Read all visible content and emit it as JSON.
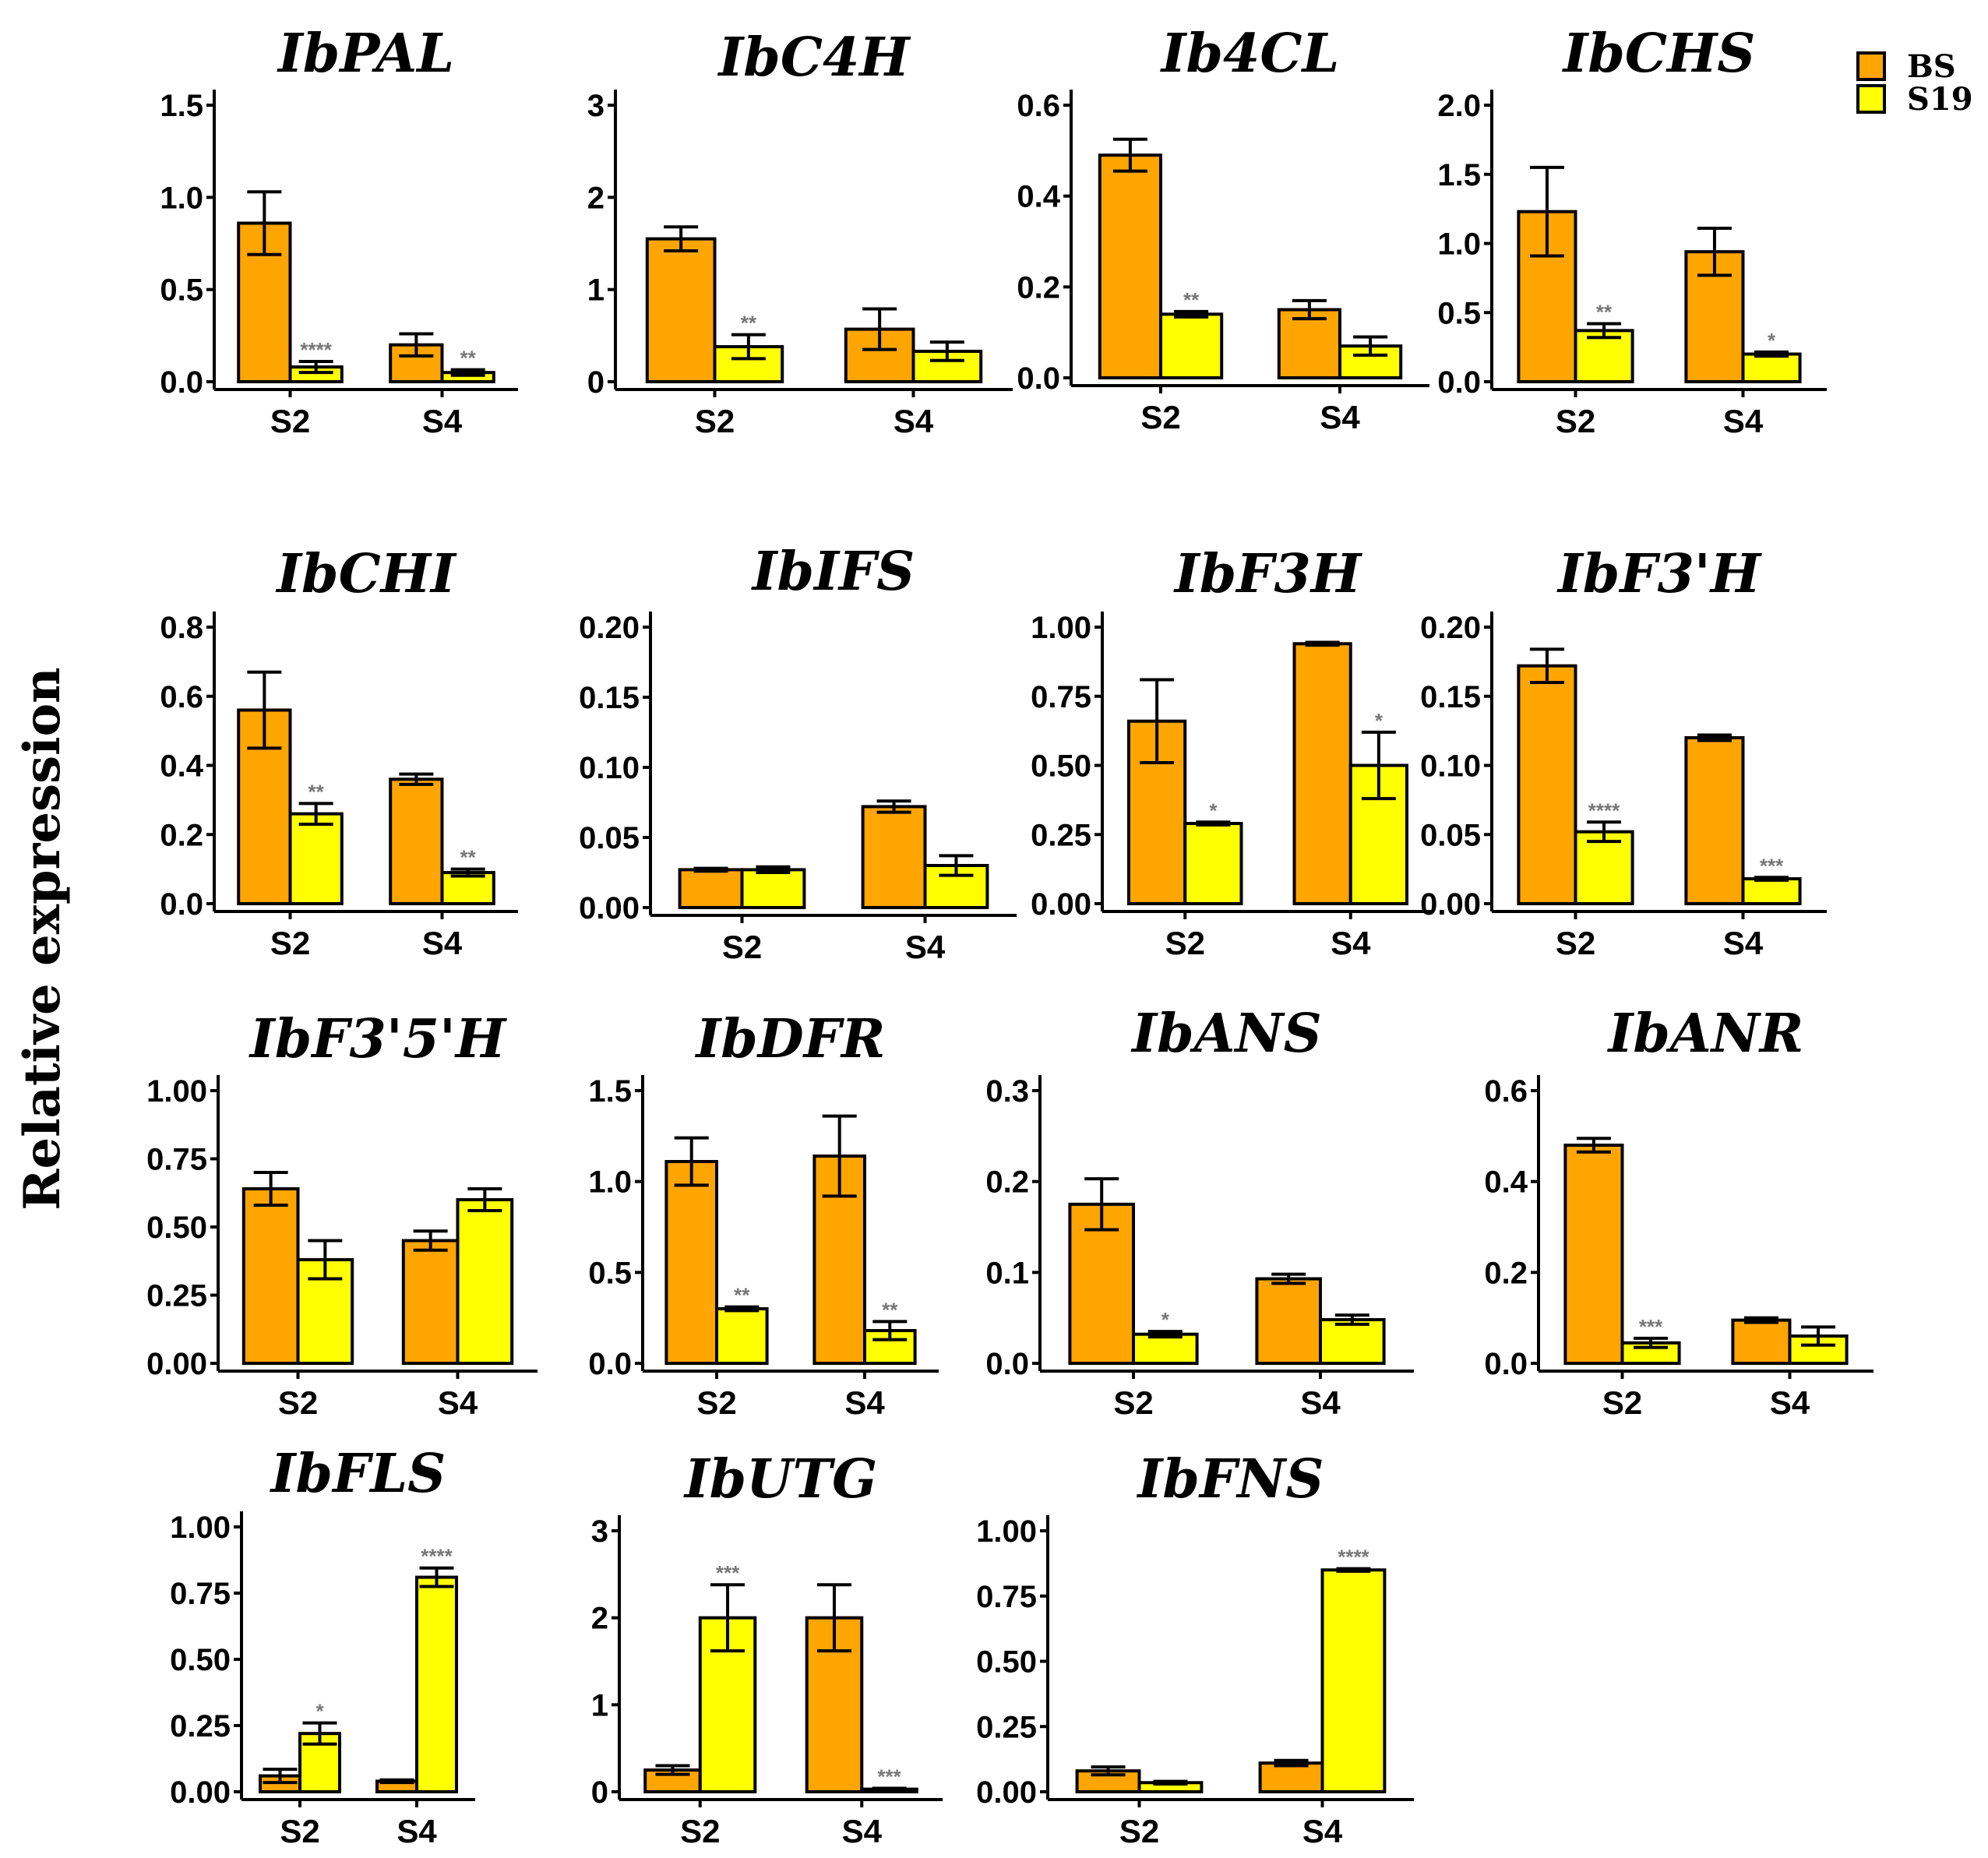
{
  "ylabel": "Relative expression",
  "legend": {
    "placement": "top-right",
    "items": [
      {
        "name": "BS",
        "color": "#FFA500"
      },
      {
        "name": "S19",
        "color": "#FFFF00"
      }
    ]
  },
  "colors": {
    "BS": "#FFA500",
    "S19": "#FFFF00"
  },
  "chart_data": [
    {
      "type": "bar",
      "title": "IbPAL",
      "categories": [
        "S2",
        "S4"
      ],
      "ylim": [
        0,
        1.5
      ],
      "yticks": [
        "0.0",
        "0.5",
        "1.0",
        "1.5"
      ],
      "series": [
        {
          "name": "BS",
          "values": [
            0.86,
            0.2
          ],
          "errors": [
            0.17,
            0.06
          ]
        },
        {
          "name": "S19",
          "values": [
            0.08,
            0.05
          ],
          "errors": [
            0.03,
            0.015
          ],
          "significance": [
            "****",
            "**"
          ]
        }
      ]
    },
    {
      "type": "bar",
      "title": "IbC4H",
      "categories": [
        "S2",
        "S4"
      ],
      "ylim": [
        0,
        3
      ],
      "yticks": [
        "0",
        "1",
        "2",
        "3"
      ],
      "series": [
        {
          "name": "BS",
          "values": [
            1.55,
            0.57
          ],
          "errors": [
            0.13,
            0.22
          ]
        },
        {
          "name": "S19",
          "values": [
            0.38,
            0.33
          ],
          "errors": [
            0.13,
            0.1
          ],
          "significance": [
            "**",
            ""
          ]
        }
      ]
    },
    {
      "type": "bar",
      "title": "Ib4CL",
      "categories": [
        "S2",
        "S4"
      ],
      "ylim": [
        0,
        0.6
      ],
      "yticks": [
        "0.0",
        "0.2",
        "0.4",
        "0.6"
      ],
      "series": [
        {
          "name": "BS",
          "values": [
            0.49,
            0.15
          ],
          "errors": [
            0.035,
            0.02
          ]
        },
        {
          "name": "S19",
          "values": [
            0.14,
            0.07
          ],
          "errors": [
            0.006,
            0.02
          ],
          "significance": [
            "**",
            ""
          ]
        }
      ]
    },
    {
      "type": "bar",
      "title": "IbCHS",
      "categories": [
        "S2",
        "S4"
      ],
      "ylim": [
        0,
        2.0
      ],
      "yticks": [
        "0.0",
        "0.5",
        "1.0",
        "1.5",
        "2.0"
      ],
      "series": [
        {
          "name": "BS",
          "values": [
            1.23,
            0.94
          ],
          "errors": [
            0.32,
            0.17
          ]
        },
        {
          "name": "S19",
          "values": [
            0.37,
            0.2
          ],
          "errors": [
            0.05,
            0.015
          ],
          "significance": [
            "**",
            "*"
          ]
        }
      ]
    },
    {
      "type": "bar",
      "title": "IbCHI",
      "categories": [
        "S2",
        "S4"
      ],
      "ylim": [
        0,
        0.8
      ],
      "yticks": [
        "0.0",
        "0.2",
        "0.4",
        "0.6",
        "0.8"
      ],
      "series": [
        {
          "name": "BS",
          "values": [
            0.56,
            0.36
          ],
          "errors": [
            0.11,
            0.015
          ]
        },
        {
          "name": "S19",
          "values": [
            0.26,
            0.09
          ],
          "errors": [
            0.03,
            0.01
          ],
          "significance": [
            "**",
            "**"
          ]
        }
      ]
    },
    {
      "type": "bar",
      "title": "IbIFS",
      "categories": [
        "S2",
        "S4"
      ],
      "ylim": [
        0,
        0.2
      ],
      "yticks": [
        "0.00",
        "0.05",
        "0.10",
        "0.15",
        "0.20"
      ],
      "series": [
        {
          "name": "BS",
          "values": [
            0.027,
            0.072
          ],
          "errors": [
            0.001,
            0.004
          ]
        },
        {
          "name": "S19",
          "values": [
            0.027,
            0.03
          ],
          "errors": [
            0.002,
            0.007
          ],
          "significance": [
            "",
            ""
          ]
        }
      ]
    },
    {
      "type": "bar",
      "title": "IbF3H",
      "categories": [
        "S2",
        "S4"
      ],
      "ylim": [
        0,
        1.0
      ],
      "yticks": [
        "0.00",
        "0.25",
        "0.50",
        "0.75",
        "1.00"
      ],
      "series": [
        {
          "name": "BS",
          "values": [
            0.66,
            0.94
          ],
          "errors": [
            0.15,
            0.005
          ]
        },
        {
          "name": "S19",
          "values": [
            0.29,
            0.5
          ],
          "errors": [
            0.005,
            0.12
          ],
          "significance": [
            "*",
            "*"
          ]
        }
      ]
    },
    {
      "type": "bar",
      "title": "IbF3'H",
      "categories": [
        "S2",
        "S4"
      ],
      "ylim": [
        0,
        0.2
      ],
      "yticks": [
        "0.00",
        "0.05",
        "0.10",
        "0.15",
        "0.20"
      ],
      "series": [
        {
          "name": "BS",
          "values": [
            0.172,
            0.12
          ],
          "errors": [
            0.012,
            0.002
          ]
        },
        {
          "name": "S19",
          "values": [
            0.052,
            0.018
          ],
          "errors": [
            0.007,
            0.001
          ],
          "significance": [
            "****",
            "***"
          ]
        }
      ]
    },
    {
      "type": "bar",
      "title": "IbF3'5'H",
      "categories": [
        "S2",
        "S4"
      ],
      "ylim": [
        0,
        1.0
      ],
      "yticks": [
        "0.00",
        "0.25",
        "0.50",
        "0.75",
        "1.00"
      ],
      "series": [
        {
          "name": "BS",
          "values": [
            0.64,
            0.45
          ],
          "errors": [
            0.06,
            0.035
          ]
        },
        {
          "name": "S19",
          "values": [
            0.38,
            0.6
          ],
          "errors": [
            0.07,
            0.04
          ],
          "significance": [
            "",
            ""
          ]
        }
      ]
    },
    {
      "type": "bar",
      "title": "IbDFR",
      "categories": [
        "S2",
        "S4"
      ],
      "ylim": [
        0,
        1.5
      ],
      "yticks": [
        "0.0",
        "0.5",
        "1.0",
        "1.5"
      ],
      "series": [
        {
          "name": "BS",
          "values": [
            1.11,
            1.14
          ],
          "errors": [
            0.13,
            0.22
          ]
        },
        {
          "name": "S19",
          "values": [
            0.3,
            0.18
          ],
          "errors": [
            0.01,
            0.05
          ],
          "significance": [
            "**",
            "**"
          ]
        }
      ]
    },
    {
      "type": "bar",
      "title": "IbANS",
      "categories": [
        "S2",
        "S4"
      ],
      "ylim": [
        0,
        0.3
      ],
      "yticks": [
        "0.0",
        "0.1",
        "0.2",
        "0.3"
      ],
      "series": [
        {
          "name": "BS",
          "values": [
            0.175,
            0.093
          ],
          "errors": [
            0.028,
            0.005
          ]
        },
        {
          "name": "S19",
          "values": [
            0.032,
            0.048
          ],
          "errors": [
            0.003,
            0.005
          ],
          "significance": [
            "*",
            ""
          ]
        }
      ]
    },
    {
      "type": "bar",
      "title": "IbANR",
      "categories": [
        "S2",
        "S4"
      ],
      "ylim": [
        0,
        0.6
      ],
      "yticks": [
        "0.0",
        "0.2",
        "0.4",
        "0.6"
      ],
      "series": [
        {
          "name": "BS",
          "values": [
            0.48,
            0.095
          ],
          "errors": [
            0.015,
            0.005
          ]
        },
        {
          "name": "S19",
          "values": [
            0.045,
            0.06
          ],
          "errors": [
            0.01,
            0.02
          ],
          "significance": [
            "***",
            ""
          ]
        }
      ]
    },
    {
      "type": "bar",
      "title": "IbFLS",
      "categories": [
        "S2",
        "S4"
      ],
      "ylim": [
        0,
        1.0
      ],
      "yticks": [
        "0.00",
        "0.25",
        "0.50",
        "0.75",
        "1.00"
      ],
      "series": [
        {
          "name": "BS",
          "values": [
            0.06,
            0.04
          ],
          "errors": [
            0.025,
            0.005
          ]
        },
        {
          "name": "S19",
          "values": [
            0.22,
            0.81
          ],
          "errors": [
            0.04,
            0.035
          ],
          "significance": [
            "*",
            "****"
          ]
        }
      ]
    },
    {
      "type": "bar",
      "title": "IbUTG",
      "categories": [
        "S2",
        "S4"
      ],
      "ylim": [
        0,
        3
      ],
      "yticks": [
        "0",
        "1",
        "2",
        "3"
      ],
      "series": [
        {
          "name": "BS",
          "values": [
            0.25,
            2.0
          ],
          "errors": [
            0.05,
            0.38
          ]
        },
        {
          "name": "S19",
          "values": [
            2.0,
            0.03
          ],
          "errors": [
            0.38,
            0.01
          ],
          "significance": [
            "***",
            "***"
          ]
        }
      ]
    },
    {
      "type": "bar",
      "title": "IbFNS",
      "categories": [
        "S2",
        "S4"
      ],
      "ylim": [
        0,
        1.0
      ],
      "yticks": [
        "0.00",
        "0.25",
        "0.50",
        "0.75",
        "1.00"
      ],
      "series": [
        {
          "name": "BS",
          "values": [
            0.08,
            0.11
          ],
          "errors": [
            0.015,
            0.01
          ]
        },
        {
          "name": "S19",
          "values": [
            0.035,
            0.85
          ],
          "errors": [
            0.005,
            0.005
          ],
          "significance": [
            "",
            "****"
          ]
        }
      ]
    }
  ]
}
